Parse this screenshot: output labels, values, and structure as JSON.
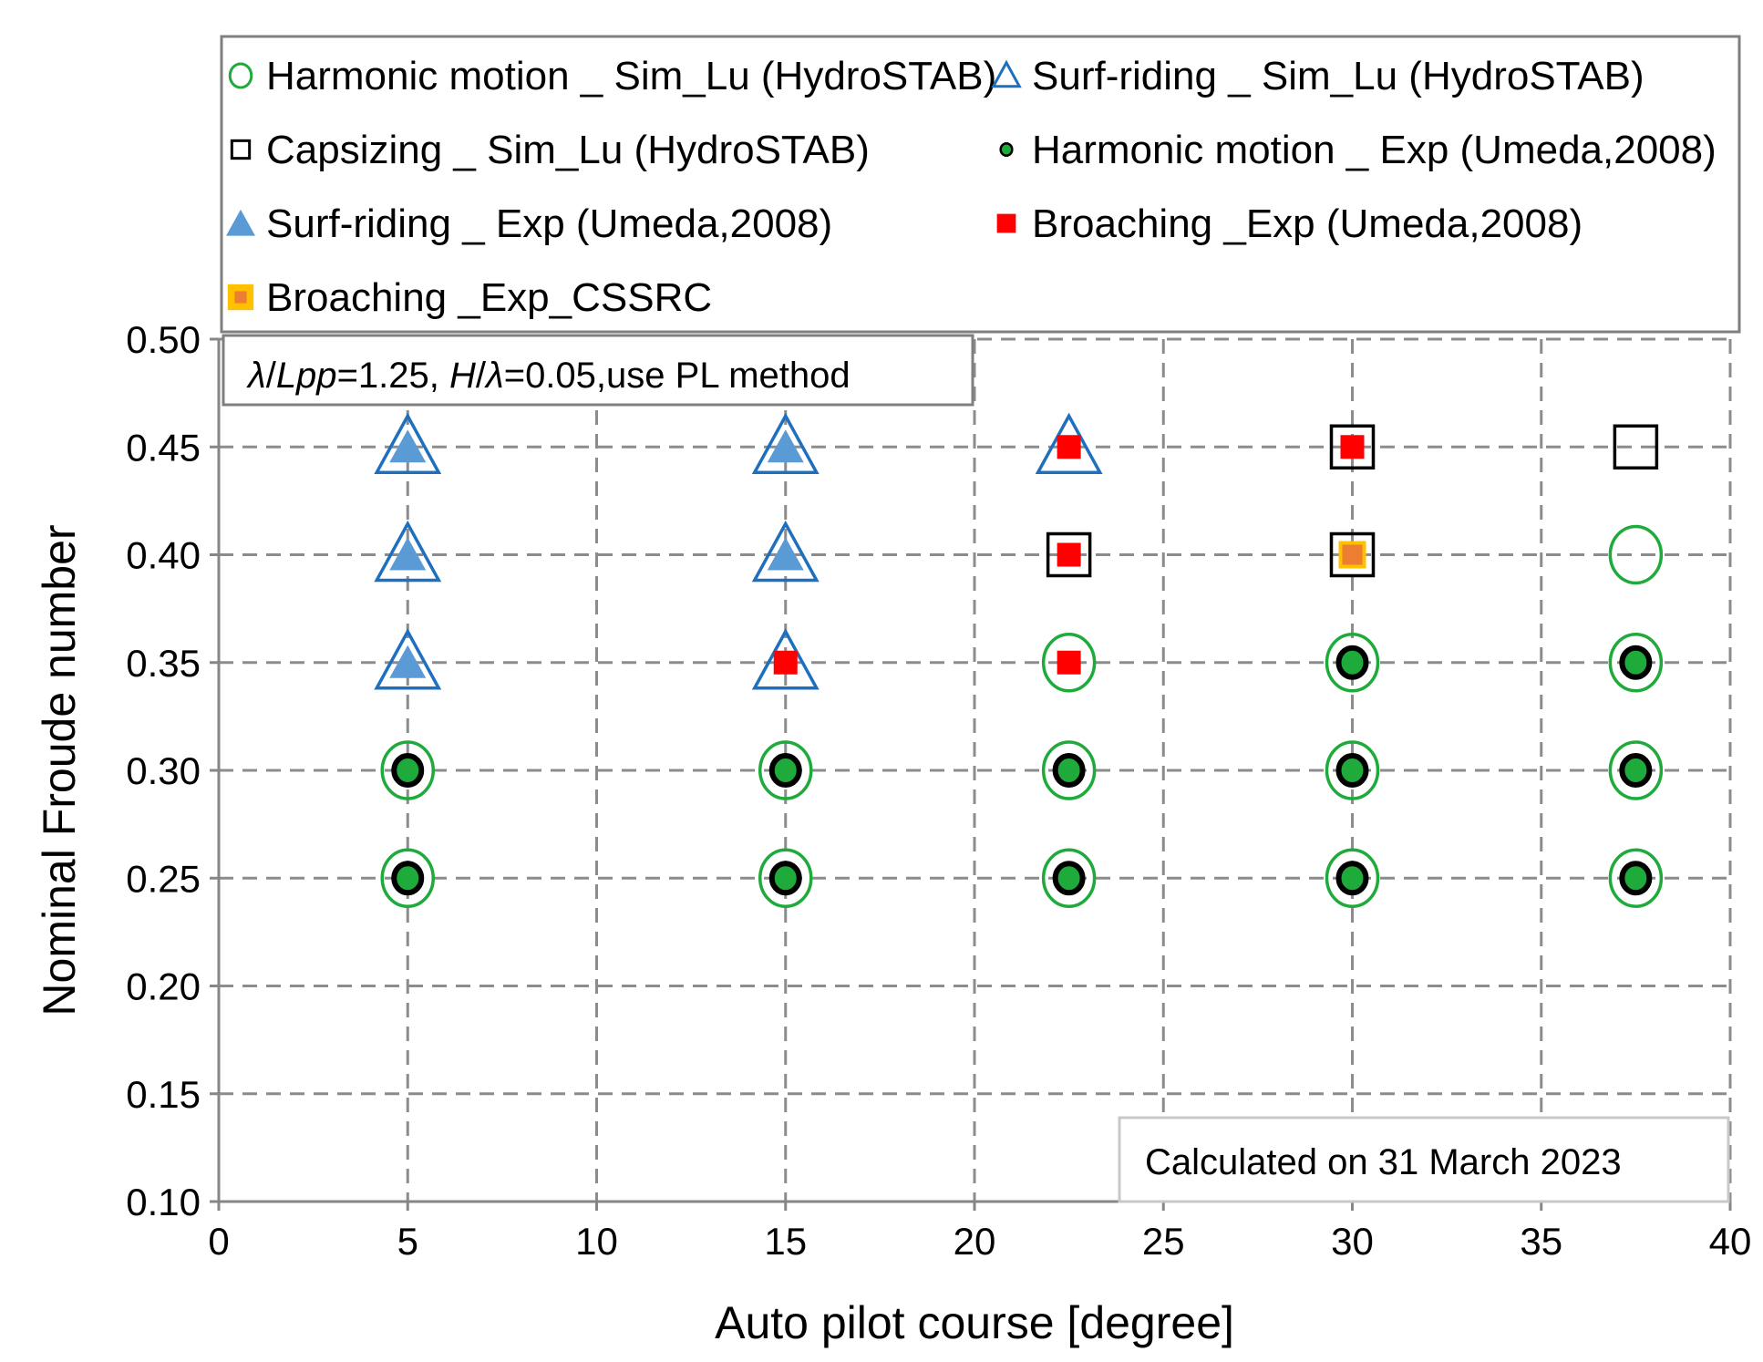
{
  "chart_data": {
    "type": "scatter",
    "xlabel": "Auto pilot course [degree]",
    "ylabel": "Nominal Froude number",
    "xlim": [
      0,
      40
    ],
    "ylim": [
      0.1,
      0.5
    ],
    "xticks": [
      0,
      5,
      10,
      15,
      20,
      25,
      30,
      35,
      40
    ],
    "xtick_labels": [
      "0",
      "5",
      "10",
      "15",
      "20",
      "25",
      "30",
      "35",
      "40"
    ],
    "yticks": [
      0.1,
      0.15,
      0.2,
      0.25,
      0.3,
      0.35,
      0.4,
      0.45,
      0.5
    ],
    "ytick_labels": [
      "0.10",
      "0.15",
      "0.20",
      "0.25",
      "0.30",
      "0.35",
      "0.40",
      "0.45",
      "0.50"
    ],
    "grid": "dashed",
    "legend_position": "top",
    "annotations": {
      "condition": {
        "lambda_sym": "λ",
        "lpp": "Lpp",
        "eq1": "=1.25, ",
        "H": "H",
        "slash": "/",
        "eq2": "=0.05,use PL method"
      },
      "date": "Calculated on 31 March 2023"
    },
    "series": [
      {
        "name": "Harmonic motion _ Sim_Lu (HydroSTAB)",
        "marker": "circle-open",
        "color": "#1faa3c",
        "points": [
          [
            5,
            0.25
          ],
          [
            5,
            0.3
          ],
          [
            15,
            0.25
          ],
          [
            15,
            0.3
          ],
          [
            22.5,
            0.25
          ],
          [
            22.5,
            0.3
          ],
          [
            22.5,
            0.35
          ],
          [
            30,
            0.25
          ],
          [
            30,
            0.3
          ],
          [
            30,
            0.35
          ],
          [
            37.5,
            0.25
          ],
          [
            37.5,
            0.3
          ],
          [
            37.5,
            0.35
          ],
          [
            37.5,
            0.4
          ]
        ]
      },
      {
        "name": "Surf-riding _ Sim_Lu (HydroSTAB)",
        "marker": "triangle-open",
        "color": "#1f6fbf",
        "points": [
          [
            5,
            0.35
          ],
          [
            5,
            0.4
          ],
          [
            5,
            0.45
          ],
          [
            15,
            0.35
          ],
          [
            15,
            0.4
          ],
          [
            15,
            0.45
          ],
          [
            22.5,
            0.45
          ]
        ]
      },
      {
        "name": "Capsizing _ Sim_Lu (HydroSTAB)",
        "marker": "square-open",
        "color": "#000000",
        "points": [
          [
            22.5,
            0.4
          ],
          [
            30,
            0.4
          ],
          [
            30,
            0.45
          ],
          [
            37.5,
            0.45
          ]
        ]
      },
      {
        "name": "Harmonic motion _ Exp (Umeda,2008)",
        "marker": "circle-filled",
        "color": "#1faa3c",
        "edge": "#000000",
        "points": [
          [
            5,
            0.25
          ],
          [
            5,
            0.3
          ],
          [
            15,
            0.25
          ],
          [
            15,
            0.3
          ],
          [
            22.5,
            0.25
          ],
          [
            22.5,
            0.3
          ],
          [
            30,
            0.25
          ],
          [
            30,
            0.3
          ],
          [
            30,
            0.35
          ],
          [
            37.5,
            0.25
          ],
          [
            37.5,
            0.3
          ],
          [
            37.5,
            0.35
          ]
        ]
      },
      {
        "name": "Surf-riding _ Exp (Umeda,2008)",
        "marker": "triangle-filled",
        "color": "#5b9bd5",
        "points": [
          [
            5,
            0.35
          ],
          [
            5,
            0.4
          ],
          [
            5,
            0.45
          ],
          [
            15,
            0.4
          ],
          [
            15,
            0.45
          ]
        ]
      },
      {
        "name": "Broaching _Exp (Umeda,2008)",
        "marker": "square-filled",
        "color": "#ff0000",
        "points": [
          [
            15,
            0.35
          ],
          [
            22.5,
            0.35
          ],
          [
            22.5,
            0.4
          ],
          [
            22.5,
            0.45
          ],
          [
            30,
            0.45
          ]
        ]
      },
      {
        "name": "Broaching _Exp_CSSRC",
        "marker": "square-filled",
        "color": "#ed7d31",
        "edge": "#ffc000",
        "points": [
          [
            30,
            0.4
          ]
        ]
      }
    ]
  }
}
